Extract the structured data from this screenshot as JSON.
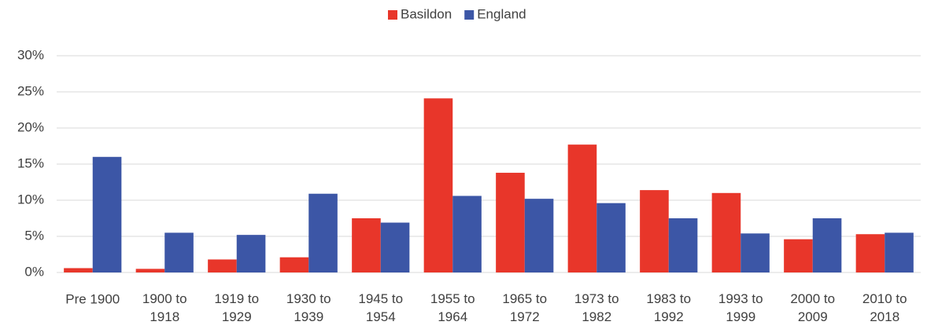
{
  "chart_data": {
    "type": "bar",
    "categories": [
      "Pre 1900",
      "1900 to 1918",
      "1919 to 1929",
      "1930 to 1939",
      "1945 to 1954",
      "1955 to 1964",
      "1965 to 1972",
      "1973 to 1982",
      "1983 to 1992",
      "1993 to 1999",
      "2000 to 2009",
      "2010 to 2018"
    ],
    "series": [
      {
        "name": "Basildon",
        "color": "#e8362a",
        "values": [
          0.6,
          0.5,
          1.8,
          2.1,
          7.5,
          24.1,
          13.8,
          17.7,
          11.4,
          11.0,
          4.6,
          5.3
        ]
      },
      {
        "name": "England",
        "color": "#3c56a6",
        "values": [
          16.0,
          5.5,
          5.2,
          10.9,
          6.9,
          10.6,
          10.2,
          9.6,
          7.5,
          5.4,
          7.5,
          5.5
        ]
      }
    ],
    "ylim": [
      0,
      30
    ],
    "yticks": [
      {
        "value": 0,
        "label": "0%"
      },
      {
        "value": 5,
        "label": "5%"
      },
      {
        "value": 10,
        "label": "10%"
      },
      {
        "value": 15,
        "label": "15%"
      },
      {
        "value": 20,
        "label": "20%"
      },
      {
        "value": 25,
        "label": "25%"
      },
      {
        "value": 30,
        "label": "30%"
      }
    ],
    "grid": true,
    "legend": "top"
  }
}
